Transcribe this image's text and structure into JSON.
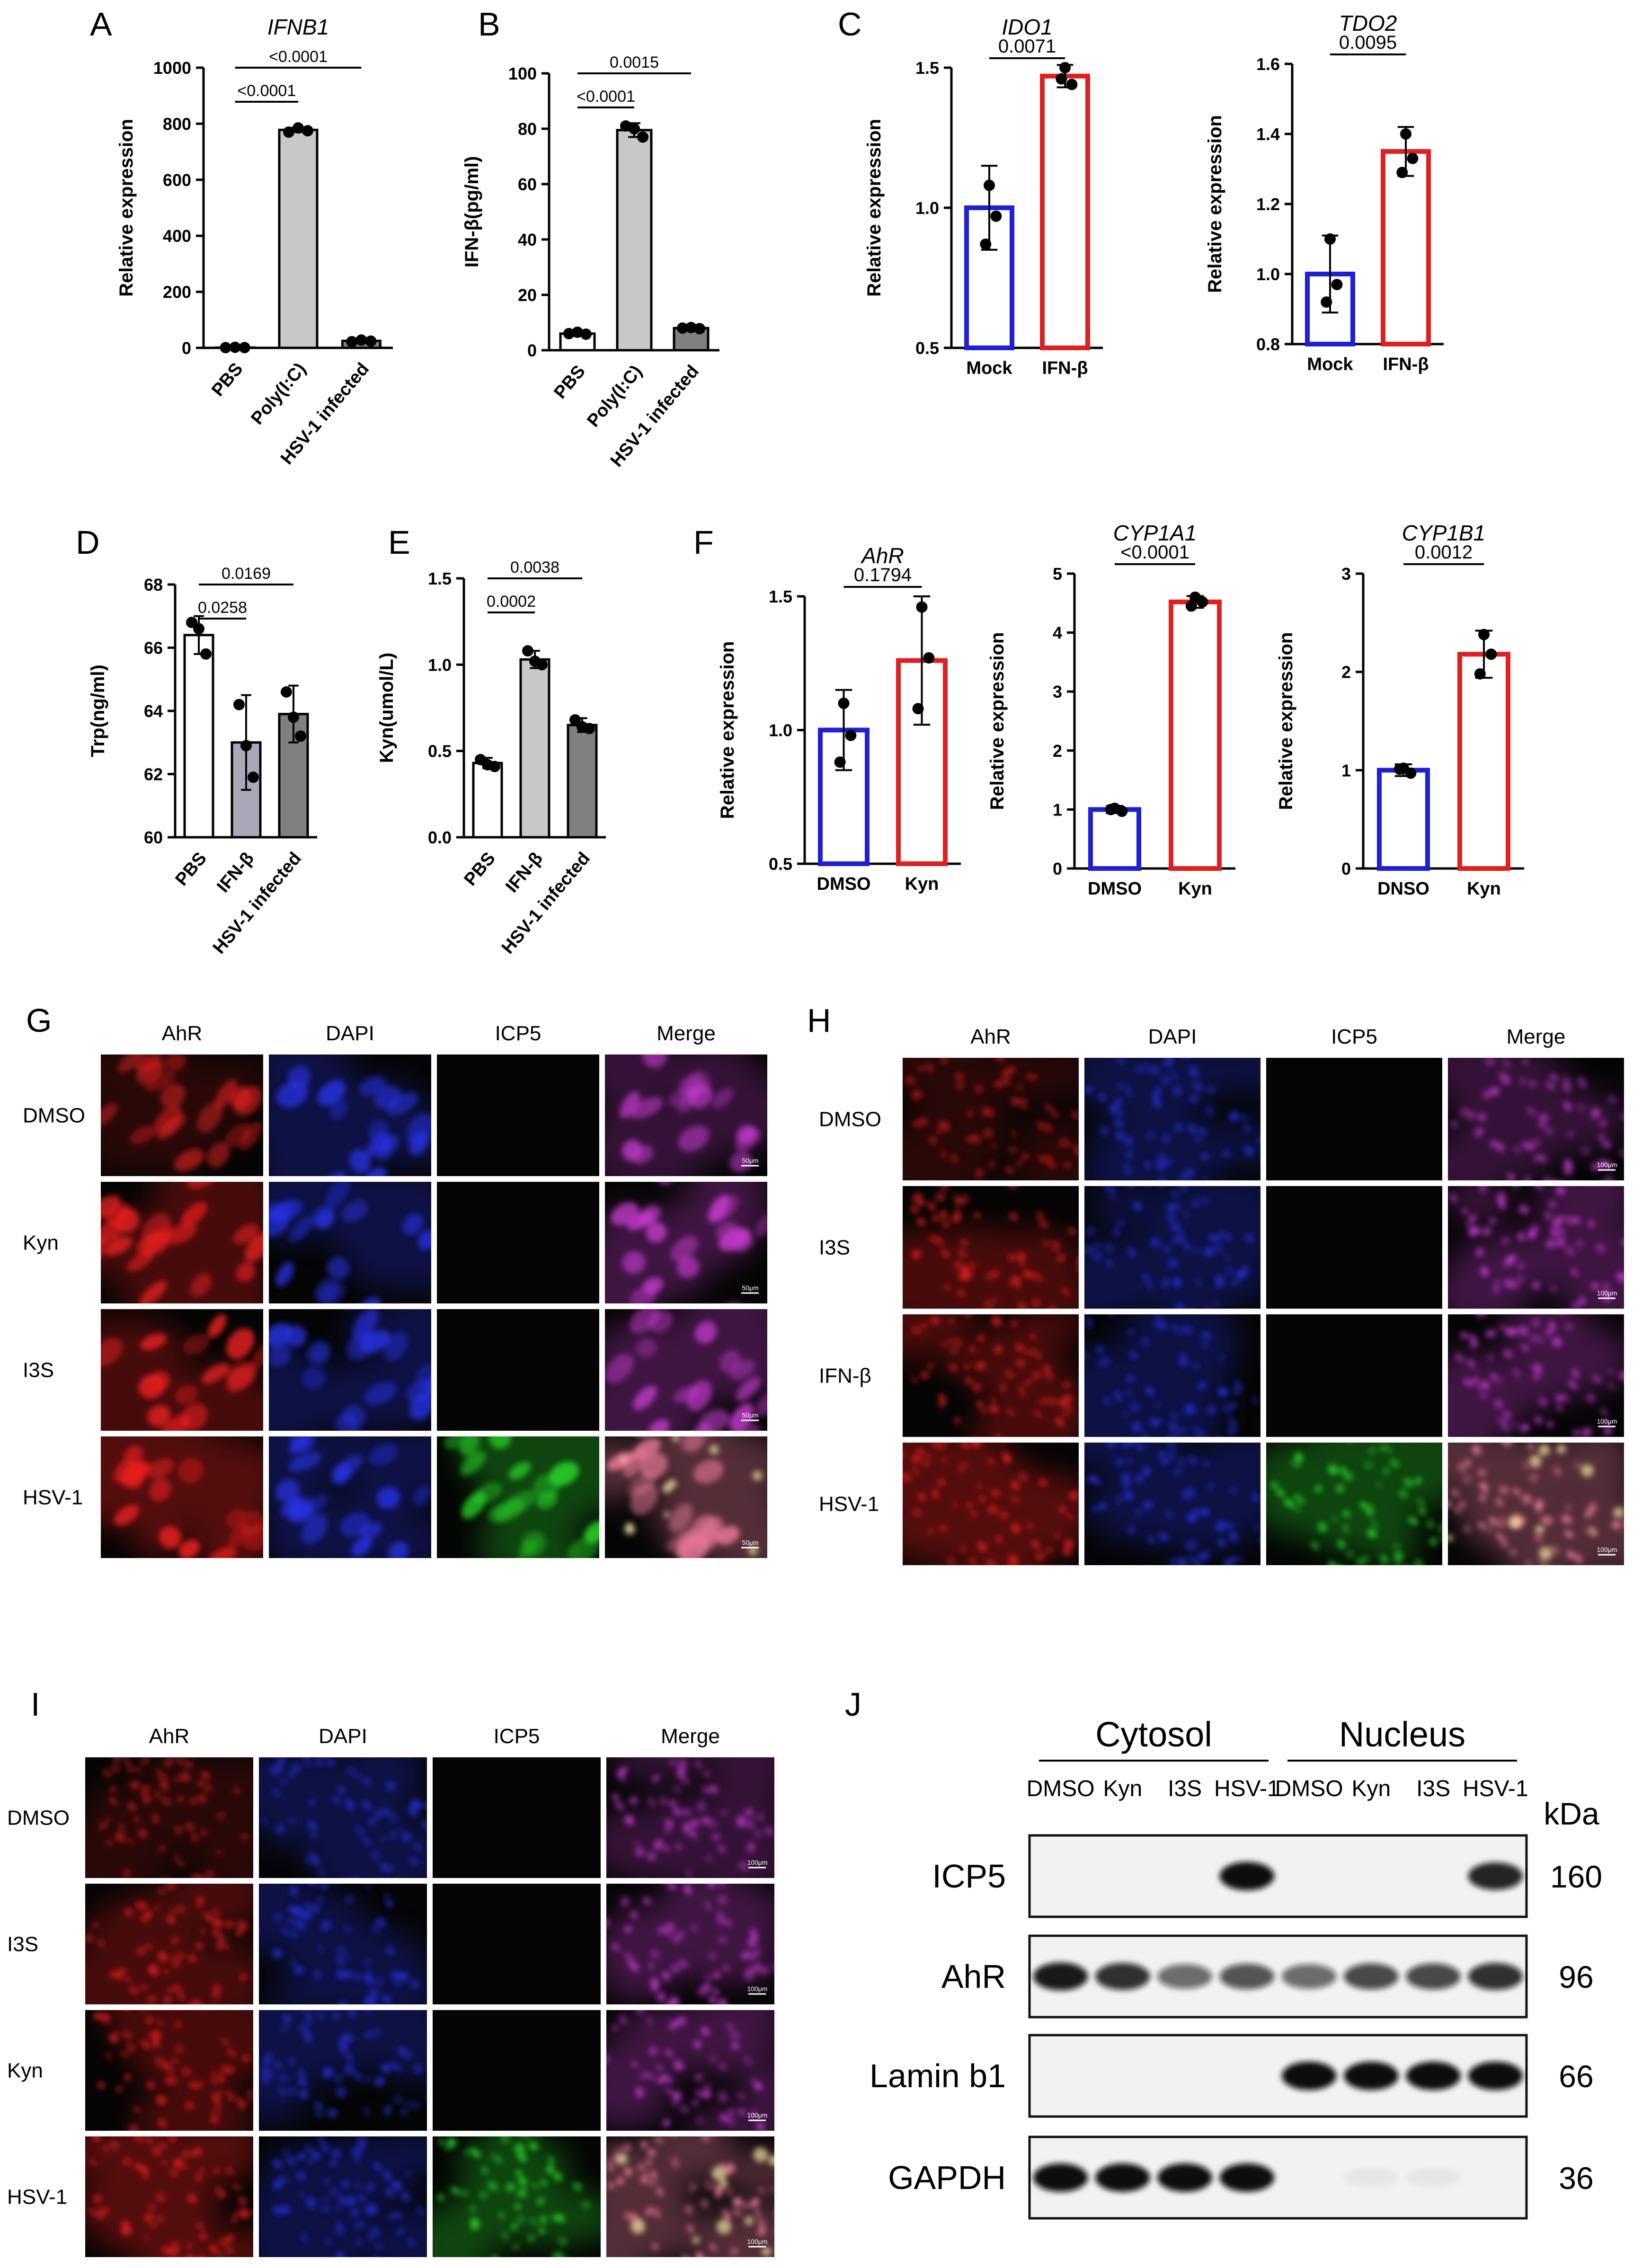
{
  "panels": {
    "A": {
      "letter": "A",
      "chart_data": {
        "type": "bar",
        "title": "IFNB1",
        "ylabel": "Relative expression",
        "categories": [
          "PBS",
          "Poly(I:C)",
          "HSV-1 infected"
        ],
        "values": [
          1,
          778,
          25
        ],
        "points": [
          [
            1,
            2,
            1
          ],
          [
            770,
            785,
            775
          ],
          [
            22,
            28,
            24
          ]
        ],
        "errors": [
          1,
          8,
          3
        ],
        "ylim": [
          0,
          1000
        ],
        "yticks": [
          0,
          200,
          400,
          600,
          800,
          1000
        ],
        "bar_colors": [
          "#ffffff",
          "#c8c8c8",
          "#808080"
        ],
        "comparisons": [
          {
            "from": 0,
            "to": 1,
            "label": "<0.0001"
          },
          {
            "from": 0,
            "to": 2,
            "label": "<0.0001"
          }
        ]
      }
    },
    "B": {
      "letter": "B",
      "chart_data": {
        "type": "bar",
        "title": "",
        "ylabel": "IFN-β(pg/ml)",
        "categories": [
          "PBS",
          "Poly(I:C)",
          "HSV-1 infected"
        ],
        "values": [
          6,
          79.5,
          8
        ],
        "points": [
          [
            6,
            6.5,
            5.8
          ],
          [
            81,
            80,
            77
          ],
          [
            8,
            8.2,
            7.8
          ]
        ],
        "errors": [
          0.6,
          2.5,
          0.4
        ],
        "ylim": [
          0,
          100
        ],
        "yticks": [
          0,
          20,
          40,
          60,
          80,
          100
        ],
        "bar_colors": [
          "#ffffff",
          "#c8c8c8",
          "#808080"
        ],
        "comparisons": [
          {
            "from": 0,
            "to": 1,
            "label": "<0.0001"
          },
          {
            "from": 0,
            "to": 2,
            "label": "0.0015"
          }
        ]
      }
    },
    "C": {
      "letter": "C",
      "charts": [
        {
          "type": "bar",
          "title": "IDO1",
          "ylabel": "Relative expression",
          "categories": [
            "Mock",
            "IFN-β"
          ],
          "values": [
            1.0,
            1.47
          ],
          "points": [
            [
              1.08,
              0.97,
              0.87
            ],
            [
              1.5,
              1.44,
              1.46
            ]
          ],
          "errors": [
            0.15,
            0.04
          ],
          "ylim": [
            0.5,
            1.5
          ],
          "yticks": [
            "0.5",
            "1.0",
            "1.5"
          ],
          "bar_colors": [
            "#1f1fd6",
            "#e02020"
          ],
          "comparisons": [
            {
              "from": 0,
              "to": 1,
              "label": "0.0071"
            }
          ]
        },
        {
          "type": "bar",
          "title": "TDO2",
          "ylabel": "Relative expression",
          "categories": [
            "Mock",
            "IFN-β"
          ],
          "values": [
            1.0,
            1.35
          ],
          "points": [
            [
              1.1,
              0.97,
              0.92
            ],
            [
              1.4,
              1.33,
              1.29
            ]
          ],
          "errors": [
            0.11,
            0.07
          ],
          "ylim": [
            0.8,
            1.6
          ],
          "yticks": [
            "0.8",
            "1.0",
            "1.2",
            "1.4",
            "1.6"
          ],
          "bar_colors": [
            "#1f1fd6",
            "#e02020"
          ],
          "comparisons": [
            {
              "from": 0,
              "to": 1,
              "label": "0.0095"
            }
          ]
        }
      ]
    },
    "D": {
      "letter": "D",
      "chart_data": {
        "type": "bar",
        "title": "",
        "ylabel": "Trp(ng/ml)",
        "categories": [
          "PBS",
          "IFN-β",
          "HSV-1 infected"
        ],
        "values": [
          66.4,
          63.0,
          63.9
        ],
        "points": [
          [
            66.8,
            66.6,
            65.8
          ],
          [
            64.2,
            62.9,
            61.9
          ],
          [
            64.6,
            63.8,
            63.2
          ]
        ],
        "errors": [
          0.6,
          1.5,
          0.9
        ],
        "ylim": [
          60,
          68
        ],
        "yticks": [
          60,
          62,
          64,
          66,
          68
        ],
        "bar_colors": [
          "#ffffff",
          "#a8a8b8",
          "#808080"
        ],
        "comparisons": [
          {
            "from": 0,
            "to": 1,
            "label": "0.0258"
          },
          {
            "from": 0,
            "to": 2,
            "label": "0.0169"
          }
        ]
      }
    },
    "E": {
      "letter": "E",
      "chart_data": {
        "type": "bar",
        "title": "",
        "ylabel": "Kyn(umol/L)",
        "categories": [
          "PBS",
          "IFN-β",
          "HSV-1 infected"
        ],
        "values": [
          0.43,
          1.03,
          0.65
        ],
        "points": [
          [
            0.45,
            0.42,
            0.41
          ],
          [
            1.08,
            1.02,
            1.0
          ],
          [
            0.68,
            0.64,
            0.63
          ]
        ],
        "errors": [
          0.03,
          0.05,
          0.04
        ],
        "ylim": [
          0.0,
          1.5
        ],
        "yticks": [
          "0.0",
          "0.5",
          "1.0",
          "1.5"
        ],
        "bar_colors": [
          "#ffffff",
          "#c8c8c8",
          "#808080"
        ],
        "comparisons": [
          {
            "from": 0,
            "to": 1,
            "label": "0.0002"
          },
          {
            "from": 0,
            "to": 2,
            "label": "0.0038"
          }
        ]
      }
    },
    "F": {
      "letter": "F",
      "charts": [
        {
          "type": "bar",
          "title": "AhR",
          "ylabel": "Relative expression",
          "categories": [
            "DMSO",
            "Kyn"
          ],
          "values": [
            1.0,
            1.26
          ],
          "points": [
            [
              1.1,
              0.98,
              0.88
            ],
            [
              1.46,
              1.27,
              1.08
            ]
          ],
          "errors": [
            0.15,
            0.24
          ],
          "ylim": [
            0.5,
            1.5
          ],
          "yticks": [
            "0.5",
            "1.0",
            "1.5"
          ],
          "bar_colors": [
            "#1f1fd6",
            "#e02020"
          ],
          "comparisons": [
            {
              "from": 0,
              "to": 1,
              "label": "0.1794"
            }
          ]
        },
        {
          "type": "bar",
          "title": "CYP1A1",
          "ylabel": "Relative expression",
          "categories": [
            "DMSO",
            "Kyn"
          ],
          "values": [
            1.0,
            4.52
          ],
          "points": [
            [
              1.02,
              0.97,
              1.0
            ],
            [
              4.6,
              4.52,
              4.45
            ]
          ],
          "errors": [
            0.06,
            0.1
          ],
          "ylim": [
            0,
            5
          ],
          "yticks": [
            "0",
            "1",
            "2",
            "3",
            "4",
            "5"
          ],
          "bar_colors": [
            "#1f1fd6",
            "#e02020"
          ],
          "comparisons": [
            {
              "from": 0,
              "to": 1,
              "label": "<0.0001"
            }
          ]
        },
        {
          "type": "bar",
          "title": "CYP1B1",
          "ylabel": "Relative expression",
          "categories": [
            "DNSO",
            "Kyn"
          ],
          "values": [
            1.0,
            2.18
          ],
          "points": [
            [
              1.02,
              0.97,
              1.01
            ],
            [
              2.38,
              2.18,
              1.98
            ]
          ],
          "errors": [
            0.06,
            0.24
          ],
          "ylim": [
            0,
            3
          ],
          "yticks": [
            "0",
            "1",
            "2",
            "3"
          ],
          "bar_colors": [
            "#1f1fd6",
            "#e02020"
          ],
          "comparisons": [
            {
              "from": 0,
              "to": 1,
              "label": "0.0012"
            }
          ]
        }
      ]
    },
    "G": {
      "letter": "G",
      "columns": [
        "AhR",
        "DAPI",
        "ICP5",
        "Merge"
      ],
      "rows": [
        "DMSO",
        "Kyn",
        "I3S",
        "HSV-1"
      ],
      "scale_label": "50μm"
    },
    "H": {
      "letter": "H",
      "columns": [
        "AhR",
        "DAPI",
        "ICP5",
        "Merge"
      ],
      "rows": [
        "DMSO",
        "I3S",
        "IFN-β",
        "HSV-1"
      ],
      "scale_label": "100μm"
    },
    "I": {
      "letter": "I",
      "columns": [
        "AhR",
        "DAPI",
        "ICP5",
        "Merge"
      ],
      "rows": [
        "DMSO",
        "I3S",
        "Kyn",
        "HSV-1"
      ],
      "scale_label": "100μm"
    },
    "J": {
      "letter": "J",
      "group_labels": [
        "Cytosol",
        "Nucleus"
      ],
      "lanes": [
        "DMSO",
        "Kyn",
        "I3S",
        "HSV-1",
        "DMSO",
        "Kyn",
        "I3S",
        "HSV-1"
      ],
      "kda_label": "kDa",
      "blots": [
        {
          "protein": "ICP5",
          "kda": "160",
          "intensity": [
            0,
            0,
            0,
            1,
            0,
            0,
            0,
            0.9
          ]
        },
        {
          "protein": "AhR",
          "kda": "96",
          "intensity": [
            0.95,
            0.85,
            0.6,
            0.7,
            0.6,
            0.75,
            0.75,
            0.85
          ]
        },
        {
          "protein": "Lamin b1",
          "kda": "66",
          "intensity": [
            0,
            0,
            0,
            0,
            1,
            1,
            1,
            1
          ]
        },
        {
          "protein": "GAPDH",
          "kda": "36",
          "intensity": [
            1,
            1,
            1,
            1,
            0,
            0.05,
            0.05,
            0
          ]
        }
      ]
    }
  }
}
